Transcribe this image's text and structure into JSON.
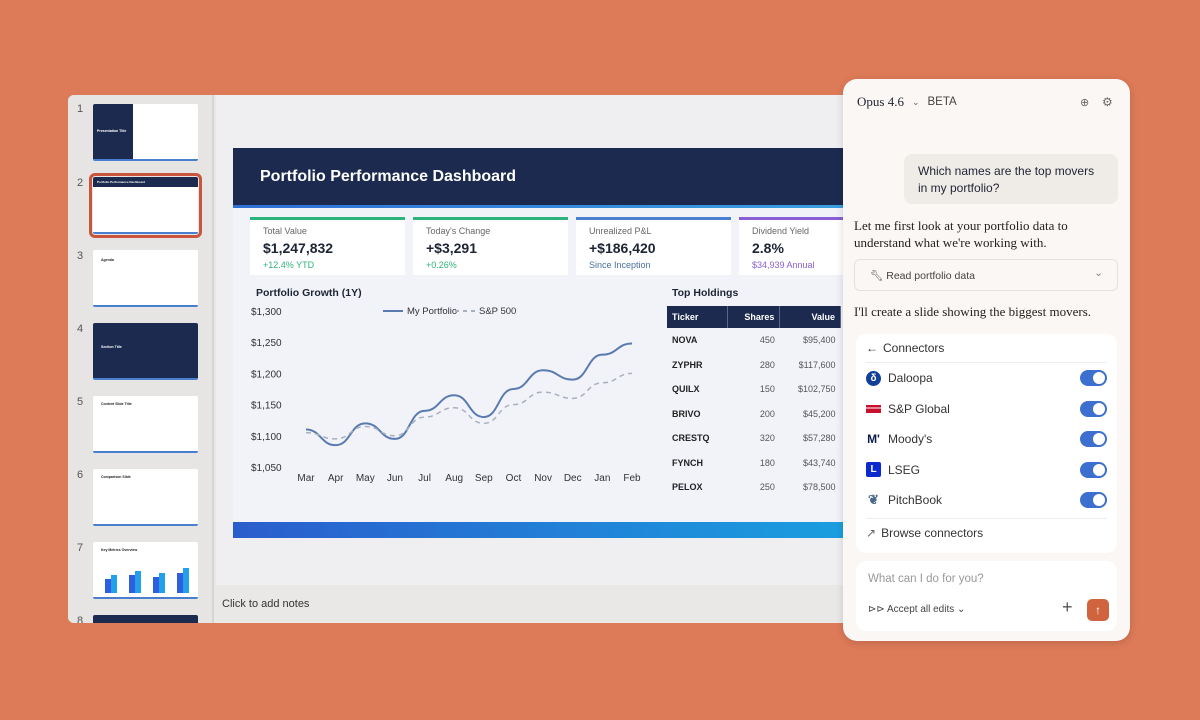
{
  "thumbnails": [
    {
      "n": "1",
      "title": "Presentation Title"
    },
    {
      "n": "2",
      "title": "Portfolio Performance Dashboard"
    },
    {
      "n": "3",
      "title": "Agenda"
    },
    {
      "n": "4",
      "title": "Section Title"
    },
    {
      "n": "5",
      "title": "Content Slide Title"
    },
    {
      "n": "6",
      "title": "Comparison Slide"
    },
    {
      "n": "7",
      "title": "Key Metrics Overview"
    },
    {
      "n": "8",
      "title": ""
    }
  ],
  "notes_placeholder": "Click to add notes",
  "slide": {
    "title": "Portfolio Performance Dashboard",
    "cards": [
      {
        "label": "Total Value",
        "value": "$1,247,832",
        "sub": "+12.4% YTD",
        "color": "#2db37a"
      },
      {
        "label": "Today's Change",
        "value": "+$3,291",
        "sub": "+0.26%",
        "color": "#2db37a"
      },
      {
        "label": "Unrealized P&L",
        "value": "+$186,420",
        "sub": "Since Inception",
        "color": "#4a7fd0"
      },
      {
        "label": "Dividend Yield",
        "value": "2.8%",
        "sub": "$34,939 Annual",
        "color": "#8a5fd6"
      }
    ],
    "holdings": {
      "title": "Top Holdings",
      "headers": [
        "Ticker",
        "Shares",
        "Value"
      ],
      "rows": [
        [
          "NOVA",
          "450",
          "$95,400"
        ],
        [
          "ZYPHR",
          "280",
          "$117,600"
        ],
        [
          "QUILX",
          "150",
          "$102,750"
        ],
        [
          "BRIVO",
          "200",
          "$45,200"
        ],
        [
          "CRESTQ",
          "320",
          "$57,280"
        ],
        [
          "FYNCH",
          "180",
          "$43,740"
        ],
        [
          "PELOX",
          "250",
          "$78,500"
        ]
      ]
    }
  },
  "chart_data": {
    "type": "line",
    "title": "Portfolio Growth (1Y)",
    "categories": [
      "Mar",
      "Apr",
      "May",
      "Jun",
      "Jul",
      "Aug",
      "Sep",
      "Oct",
      "Nov",
      "Dec",
      "Jan",
      "Feb"
    ],
    "yticks": [
      "$1,050",
      "$1,100",
      "$1,150",
      "$1,200",
      "$1,250",
      "$1,300"
    ],
    "ylim": [
      1050,
      1300
    ],
    "grid": false,
    "legend": "top",
    "series": [
      {
        "name": "My Portfolio",
        "style": "solid",
        "color": "#5a7bb0",
        "values": [
          1110,
          1085,
          1120,
          1095,
          1140,
          1165,
          1130,
          1175,
          1205,
          1190,
          1230,
          1248
        ]
      },
      {
        "name": "S&P 500",
        "style": "dashed",
        "color": "#a9b0bd",
        "values": [
          1105,
          1095,
          1115,
          1100,
          1130,
          1145,
          1120,
          1150,
          1170,
          1160,
          1185,
          1200
        ]
      }
    ]
  },
  "chat": {
    "model": "Opus 4.6",
    "badge": "BETA",
    "user_msg": "Which names are the top movers in my portfolio?",
    "reply1": "Let me first look at your portfolio data to understand what we're working with.",
    "tool": "Read portfolio data",
    "reply2": "I'll create a slide showing the biggest movers.",
    "connectors_title": "Connectors",
    "connectors": [
      {
        "name": "Daloopa",
        "on": true
      },
      {
        "name": "S&P Global",
        "on": true
      },
      {
        "name": "Moody's",
        "on": true
      },
      {
        "name": "LSEG",
        "on": true
      },
      {
        "name": "PitchBook",
        "on": true
      }
    ],
    "browse": "Browse connectors",
    "input_placeholder": "What can I do for you?",
    "accept": "Accept all edits",
    "accent": "#d0643f"
  }
}
